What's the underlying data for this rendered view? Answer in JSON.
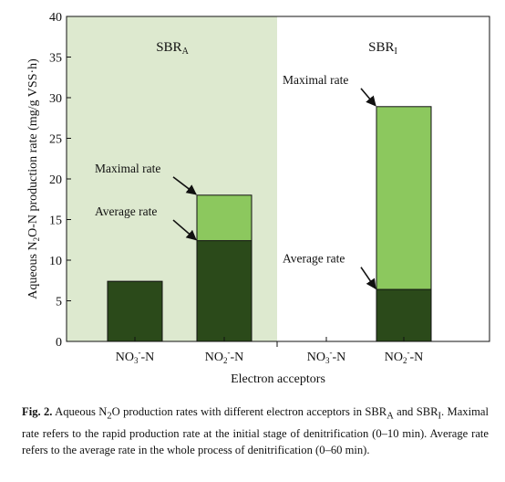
{
  "chart_data": {
    "type": "bar",
    "panels": [
      {
        "name": "SBRA",
        "label_main": "SBR",
        "label_sub": "A",
        "shaded": true,
        "shade_color": "#dde9cf"
      },
      {
        "name": "SBRI",
        "label_main": "SBR",
        "label_sub": "I",
        "shaded": false
      }
    ],
    "categories": [
      {
        "panel": 0,
        "label_main": "NO",
        "label_sub": "3",
        "label_sup": "-",
        "label_tail": "-N"
      },
      {
        "panel": 0,
        "label_main": "NO",
        "label_sub": "2",
        "label_sup": "-",
        "label_tail": "-N"
      },
      {
        "panel": 1,
        "label_main": "NO",
        "label_sub": "3",
        "label_sup": "-",
        "label_tail": "-N"
      },
      {
        "panel": 1,
        "label_main": "NO",
        "label_sub": "2",
        "label_sup": "-",
        "label_tail": "-N"
      }
    ],
    "series": [
      {
        "name": "Average rate",
        "color": "#2b4a1a",
        "values": [
          7.4,
          12.4,
          null,
          6.4
        ]
      },
      {
        "name": "Maximal rate",
        "color": "#8cc85e",
        "values": [
          null,
          18.0,
          null,
          28.9
        ]
      }
    ],
    "annotations": [
      {
        "text": "Maximal rate",
        "category": 1,
        "value": 18.0,
        "label_value": 20.8,
        "label_dx": -112
      },
      {
        "text": "Average rate",
        "category": 1,
        "value": 12.4,
        "label_value": 15.5,
        "label_dx": -112
      },
      {
        "text": "Maximal rate",
        "category": 3,
        "value": 28.9,
        "label_value": 31.7,
        "label_dx": -103
      },
      {
        "text": "Average rate",
        "category": 3,
        "value": 6.4,
        "label_value": 9.7,
        "label_dx": -103
      }
    ],
    "xlabel": "Electron acceptors",
    "ylabel": {
      "pre": "Aqueous N",
      "sub": "2",
      "post": "O-N production rate (mg/g VSS·h)"
    },
    "ylim": [
      0,
      40
    ],
    "yticks": [
      0,
      5,
      10,
      15,
      20,
      25,
      30,
      35,
      40
    ],
    "grid": false,
    "legend": "none"
  },
  "caption": {
    "lead": "Fig. 2.",
    "text_1": " Aqueous N",
    "sub_1": "2",
    "text_2": "O production rates with different electron acceptors in SBR",
    "sub_2": "A",
    "text_3": " and SBR",
    "sub_3": "I",
    "text_4": ". Maximal rate refers to the rapid production rate at the initial stage of denitrification (0–10 min). Average rate refers to the average rate in the whole process of denitrification (0–60 min)."
  }
}
